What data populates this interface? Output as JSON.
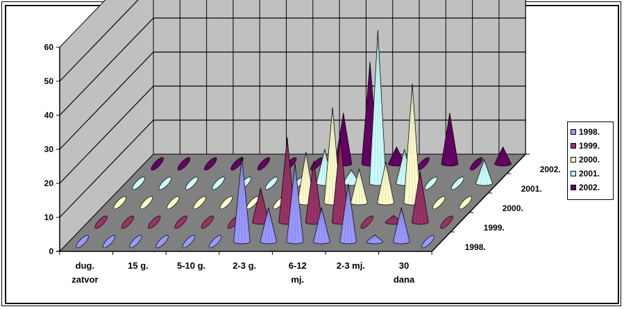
{
  "chart_data": {
    "type": "bar",
    "style": "3d-cone",
    "categories": [
      "dug. zatvor",
      "",
      "15 g.",
      "",
      "5-10 g.",
      "",
      "2-3 g.",
      "",
      "6-12 mj.",
      "",
      "2-3 mj.",
      "",
      "30 dana",
      ""
    ],
    "category_labels": [
      {
        "text": "dug.",
        "text2": "zatvor",
        "index": 0
      },
      {
        "text": "15 g.",
        "text2": "",
        "index": 2
      },
      {
        "text": "5-10 g.",
        "text2": "",
        "index": 4
      },
      {
        "text": "2-3 g.",
        "text2": "",
        "index": 6
      },
      {
        "text": "6-12",
        "text2": "mj.",
        "index": 8
      },
      {
        "text": "2-3 mj.",
        "text2": "",
        "index": 10
      },
      {
        "text": "30",
        "text2": "dana",
        "index": 12
      }
    ],
    "series": [
      {
        "name": "1998.",
        "color": "#9999ff",
        "values": [
          0,
          0,
          0,
          0,
          0,
          0,
          25,
          10,
          23,
          10,
          17,
          2,
          10,
          0
        ]
      },
      {
        "name": "1999.",
        "color": "#993366",
        "values": [
          0,
          0,
          0,
          0,
          0,
          0,
          10,
          25,
          18,
          25,
          0,
          2,
          15,
          0
        ]
      },
      {
        "name": "2000.",
        "color": "#ffffcc",
        "values": [
          0,
          0,
          0,
          0,
          0,
          0,
          0,
          15,
          28,
          10,
          12,
          35,
          0,
          0
        ]
      },
      {
        "name": "2001.",
        "color": "#ccffff",
        "values": [
          0,
          0,
          0,
          0,
          0,
          0,
          0,
          10,
          4,
          45,
          10,
          0,
          0,
          7
        ]
      },
      {
        "name": "2002.",
        "color": "#660066",
        "values": [
          0,
          0,
          0,
          0,
          0,
          0,
          0,
          15,
          30,
          5,
          0,
          15,
          0,
          5
        ]
      }
    ],
    "depth_labels": [
      "1998.",
      "1999.",
      "2000.",
      "2001.",
      "2002."
    ],
    "y_ticks": [
      "0",
      "10",
      "20",
      "30",
      "40",
      "50",
      "60"
    ],
    "ylim": [
      0,
      60
    ],
    "legend": "right",
    "grid": true,
    "wall_color": "#c0c0c0",
    "floor_color": "#808080"
  }
}
